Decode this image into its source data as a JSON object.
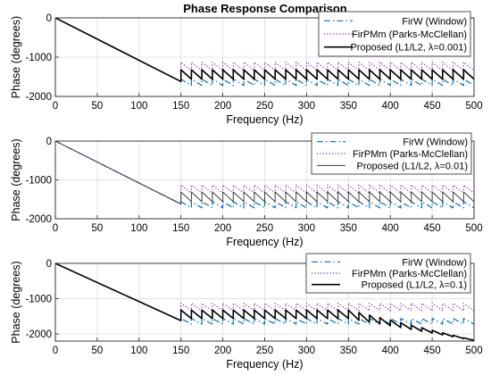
{
  "title": "Phase Response Comparison",
  "chart_data": [
    {
      "type": "line",
      "xlabel": "Frequency (Hz)",
      "ylabel": "Phase (degrees)",
      "xlim": [
        0,
        500
      ],
      "ylim": [
        -2000,
        0
      ],
      "xticks": [
        0,
        50,
        100,
        150,
        200,
        250,
        300,
        350,
        400,
        450,
        500
      ],
      "yticks": [
        -2000,
        -1000,
        0
      ],
      "ytick_labels": [
        "-2000",
        "-1000",
        "0"
      ],
      "grid": true,
      "legend": "top-right",
      "series": [
        {
          "name": "FirW (Window)",
          "color": "#0072BD",
          "style": "dashdot",
          "passband_end": 150,
          "start": 0,
          "end_at_passband": -1620,
          "stopband_low": -1720,
          "stopband_high": -1560,
          "sawtooth_period": 12.5
        },
        {
          "name": "FirPMm (Parks-McClellan)",
          "color": "#7E2F8E",
          "style": "dotted",
          "passband_end": 150,
          "start": 0,
          "end_at_passband": -1620,
          "stopband_low": -1340,
          "stopband_high": -1130,
          "sawtooth_period": 12.5
        },
        {
          "name": "Proposed (L1/L2, λ=0.001)",
          "color": "#000000",
          "style": "solid",
          "passband_end": 150,
          "start": 0,
          "end_at_passband": -1620,
          "stopband_low": -1560,
          "stopband_high": -1320,
          "sawtooth_period": 12.5
        }
      ]
    },
    {
      "type": "line",
      "xlabel": "Frequency (Hz)",
      "ylabel": "Phase (degrees)",
      "xlim": [
        0,
        500
      ],
      "ylim": [
        -2000,
        0
      ],
      "xticks": [
        0,
        50,
        100,
        150,
        200,
        250,
        300,
        350,
        400,
        450,
        500
      ],
      "yticks": [
        -2000,
        -1000,
        0
      ],
      "ytick_labels": [
        "-2000",
        "-1000",
        "0"
      ],
      "grid": true,
      "legend": "top-right",
      "series": [
        {
          "name": "FirW (Window)",
          "color": "#0072BD",
          "style": "dashdot",
          "passband_end": 150,
          "start": 0,
          "end_at_passband": -1620,
          "stopband_low": -1720,
          "stopband_high": -1560,
          "sawtooth_period": 12.5
        },
        {
          "name": "FirPMm (Parks-McClellan)",
          "color": "#7E2F8E",
          "style": "dotted",
          "passband_end": 150,
          "start": 0,
          "end_at_passband": -1620,
          "stopband_low": -1340,
          "stopband_high": -1130,
          "sawtooth_period": 12.5
        },
        {
          "name": "Proposed (L1/L2, λ=0.01)",
          "color": "#404040",
          "style": "solid-thin",
          "passband_end": 150,
          "start": 0,
          "end_at_passband": -1620,
          "stopband_low": -1560,
          "stopband_high": -1310,
          "sawtooth_period": 12.5
        }
      ]
    },
    {
      "type": "line",
      "xlabel": "Frequency (Hz)",
      "ylabel": "Phase (degrees)",
      "xlim": [
        0,
        500
      ],
      "ylim": [
        -2200,
        0
      ],
      "xticks": [
        0,
        50,
        100,
        150,
        200,
        250,
        300,
        350,
        400,
        450,
        500
      ],
      "yticks": [
        -2000,
        -1000,
        0
      ],
      "ytick_labels": [
        "-2000",
        "-1000",
        "0"
      ],
      "grid": true,
      "legend": "top-right",
      "series": [
        {
          "name": "FirW (Window)",
          "color": "#0072BD",
          "style": "dashdot",
          "passband_end": 150,
          "start": 0,
          "end_at_passband": -1620,
          "stopband_low": -1720,
          "stopband_high": -1560,
          "sawtooth_period": 12.5
        },
        {
          "name": "FirPMm (Parks-McClellan)",
          "color": "#7E2F8E",
          "style": "dotted",
          "passband_end": 150,
          "start": 0,
          "end_at_passband": -1620,
          "stopband_low": -1340,
          "stopband_high": -1130,
          "sawtooth_period": 12.5
        },
        {
          "name": "Proposed (L1/L2, λ=0.1)",
          "color": "#000000",
          "style": "solid",
          "passband_end": 150,
          "start": 0,
          "end_at_passband": -1620,
          "stopband_low": -1560,
          "stopband_high": -1320,
          "sawtooth_period": 12.5,
          "descends_after": 350,
          "end_value": -2180
        }
      ]
    }
  ]
}
